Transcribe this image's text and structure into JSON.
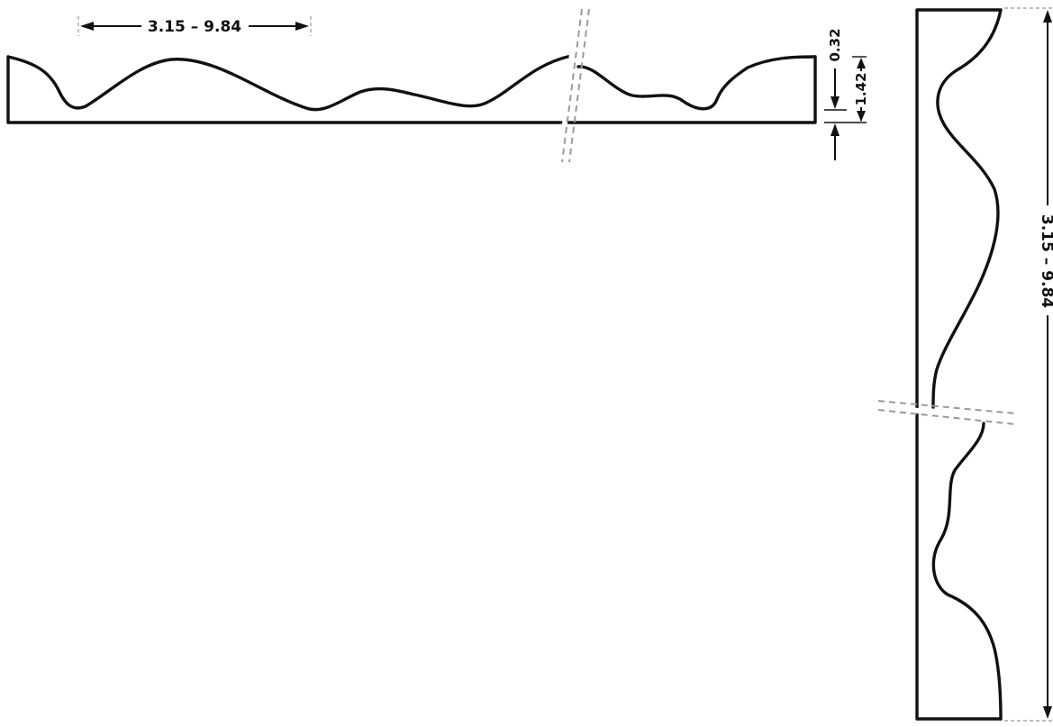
{
  "dimensions": {
    "top_length": "3.15 – 9.84",
    "top_height_min": "0.32",
    "top_height_max": "1.42",
    "side_length": "3.15 – 9.84"
  }
}
